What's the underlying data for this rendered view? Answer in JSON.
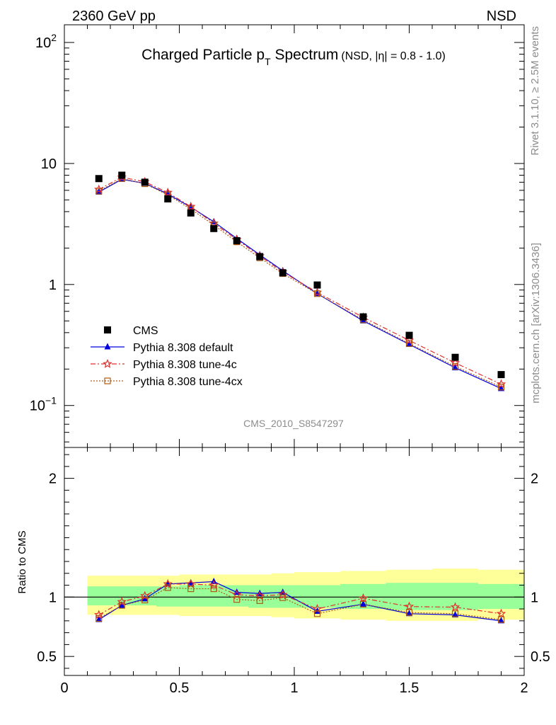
{
  "header": {
    "energy_label": "2360 GeV pp",
    "process_label": "NSD"
  },
  "side_labels": {
    "rivet": "Rivet 3.1.10, ≥ 2.5M events",
    "mcplots": "mcplots.cern.ch [arXiv:1306.3436]"
  },
  "chart_data": {
    "type": "scatter",
    "title_main": "Charged Particle p",
    "title_sub": "T",
    "title_tail": " Spectrum",
    "title_small": "(NSD, |η| = 0.8 - 1.0)",
    "analysis_id": "CMS_2010_S8547297",
    "xlim": [
      0,
      2
    ],
    "x_ticks": [
      0,
      0.5,
      1,
      1.5,
      2
    ],
    "x_tick_labels": [
      "0",
      "0.5",
      "1",
      "1.5",
      "2"
    ],
    "main_yscale": "log",
    "main_ylim": [
      0.045,
      140
    ],
    "main_y_tick_labels": [
      {
        "value": 100,
        "base": "10",
        "exp": "2"
      },
      {
        "value": 10,
        "base": "10",
        "exp": ""
      },
      {
        "value": 1,
        "base": "1",
        "exp": ""
      },
      {
        "value": 0.1,
        "base": "10",
        "exp": "−1"
      }
    ],
    "ratio_ylabel": "Ratio to CMS",
    "ratio_ylim": [
      0.34,
      2.26
    ],
    "ratio_y_ticks": [
      0.5,
      1,
      2
    ],
    "ratio_y_tick_labels": [
      "0.5",
      "1",
      "2"
    ],
    "x": [
      0.15,
      0.25,
      0.35,
      0.45,
      0.55,
      0.65,
      0.75,
      0.85,
      0.95,
      1.1,
      1.3,
      1.5,
      1.7,
      1.9
    ],
    "bin_edges": [
      0.1,
      0.2,
      0.3,
      0.4,
      0.5,
      0.6,
      0.7,
      0.8,
      0.9,
      1.0,
      1.2,
      1.4,
      1.6,
      1.8,
      2.0
    ],
    "band_outer": [
      [
        0.85,
        1.18
      ],
      [
        0.85,
        1.18
      ],
      [
        0.85,
        1.18
      ],
      [
        0.85,
        1.18
      ],
      [
        0.84,
        1.19
      ],
      [
        0.84,
        1.19
      ],
      [
        0.84,
        1.19
      ],
      [
        0.84,
        1.19
      ],
      [
        0.83,
        1.2
      ],
      [
        0.82,
        1.21
      ],
      [
        0.81,
        1.22
      ],
      [
        0.8,
        1.23
      ],
      [
        0.8,
        1.24
      ],
      [
        0.81,
        1.23
      ]
    ],
    "band_inner": [
      [
        0.93,
        1.09
      ],
      [
        0.93,
        1.09
      ],
      [
        0.93,
        1.09
      ],
      [
        0.92,
        1.09
      ],
      [
        0.92,
        1.1
      ],
      [
        0.92,
        1.1
      ],
      [
        0.92,
        1.1
      ],
      [
        0.91,
        1.1
      ],
      [
        0.91,
        1.1
      ],
      [
        0.91,
        1.1
      ],
      [
        0.9,
        1.11
      ],
      [
        0.89,
        1.12
      ],
      [
        0.89,
        1.12
      ],
      [
        0.9,
        1.11
      ]
    ],
    "series": [
      {
        "name": "CMS",
        "marker": "square",
        "color": "#000000",
        "values": [
          7.5,
          8.0,
          7.0,
          5.1,
          3.9,
          2.9,
          2.3,
          1.7,
          1.25,
          0.99,
          0.54,
          0.38,
          0.25,
          0.18
        ]
      },
      {
        "name": "Pythia 8.308 default",
        "marker": "triangle",
        "color": "#0000dd",
        "dash": "",
        "values": [
          5.8,
          7.4,
          6.85,
          5.6,
          4.35,
          3.3,
          2.4,
          1.76,
          1.3,
          0.84,
          0.5,
          0.32,
          0.205,
          0.138
        ],
        "ratio": [
          0.81,
          0.93,
          0.985,
          1.11,
          1.12,
          1.13,
          1.04,
          1.03,
          1.04,
          0.88,
          0.94,
          0.86,
          0.85,
          0.8
        ]
      },
      {
        "name": "Pythia 8.308 tune-4c",
        "marker": "star",
        "color": "#e03030",
        "dash": "7,3,2,3",
        "values": [
          6.1,
          7.7,
          7.05,
          5.75,
          4.4,
          3.2,
          2.35,
          1.72,
          1.27,
          0.86,
          0.535,
          0.345,
          0.225,
          0.15
        ],
        "ratio": [
          0.85,
          0.96,
          1.01,
          1.11,
          1.11,
          1.1,
          1.02,
          1.01,
          1.02,
          0.9,
          0.99,
          0.92,
          0.915,
          0.86
        ]
      },
      {
        "name": "Pythia 8.308 tune-4cx",
        "marker": "square-open",
        "color": "#b05a10",
        "dash": "2,2",
        "values": [
          5.9,
          7.5,
          6.8,
          5.5,
          4.2,
          3.1,
          2.25,
          1.66,
          1.23,
          0.84,
          0.51,
          0.325,
          0.21,
          0.142
        ],
        "ratio": [
          0.82,
          0.93,
          0.975,
          1.08,
          1.07,
          1.07,
          0.98,
          0.97,
          0.995,
          0.86,
          0.94,
          0.87,
          0.86,
          0.81
        ]
      }
    ]
  }
}
